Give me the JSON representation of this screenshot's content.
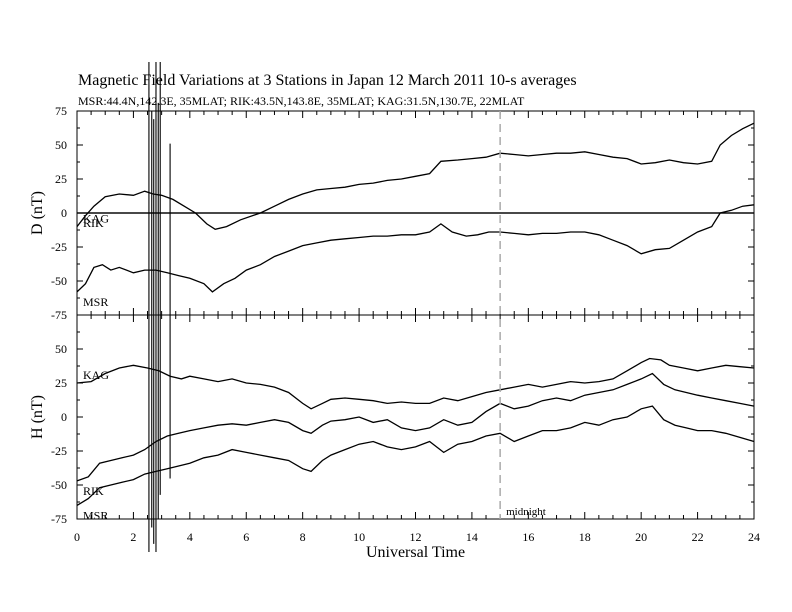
{
  "chart_data": {
    "type": "line",
    "title": "Magnetic Field Variations at 3 Stations in Japan         12  March    2011       10-s averages",
    "subtitle": "MSR:44.4N,142.3E, 35MLAT;  RIK:43.5N,143.8E, 35MLAT;  KAG:31.5N,130.7E, 22MLAT",
    "xlabel": "Universal Time",
    "x_ticks": [
      "0",
      "2",
      "4",
      "6",
      "8",
      "10",
      "12",
      "14",
      "16",
      "18",
      "20",
      "22",
      "24"
    ],
    "xlim": [
      0,
      24
    ],
    "panels": [
      {
        "ylabel": "D (nT)",
        "ylim": [
          -75,
          75
        ],
        "y_ticks": [
          "75",
          "50",
          "25",
          "0",
          "-25",
          "-50",
          "-75"
        ],
        "zero_line": true,
        "series": [
          {
            "name": "KAG",
            "x": [
              0,
              0.3,
              0.6,
              1.0,
              1.5,
              2.0,
              2.4,
              2.7,
              3.0,
              3.4,
              3.8,
              4.2,
              4.6,
              4.9,
              5.3,
              5.8,
              6.5,
              7.0,
              7.5,
              8.0,
              8.5,
              9.0,
              9.5,
              10.0,
              10.5,
              11.0,
              11.5,
              12.0,
              12.5,
              12.9,
              13.5,
              14.0,
              14.5,
              15.0,
              15.5,
              16.0,
              16.5,
              17.0,
              17.5,
              18.0,
              18.5,
              19.0,
              19.5,
              20.0,
              20.5,
              21.0,
              21.5,
              22.0,
              22.5,
              22.8,
              23.2,
              23.6,
              24.0
            ],
            "y": [
              -10,
              -2,
              5,
              12,
              14,
              13,
              16,
              14,
              13,
              10,
              5,
              0,
              -8,
              -12,
              -10,
              -5,
              0,
              5,
              10,
              14,
              17,
              18,
              19,
              21,
              22,
              24,
              25,
              27,
              29,
              38,
              39,
              40,
              41,
              44,
              43,
              42,
              43,
              44,
              44,
              45,
              43,
              41,
              40,
              36,
              37,
              39,
              37,
              36,
              38,
              50,
              57,
              62,
              66
            ]
          },
          {
            "name": "RIK",
            "x": [
              0,
              24
            ],
            "y": [
              0,
              0
            ]
          },
          {
            "name": "MSR",
            "x": [
              0,
              0.3,
              0.6,
              0.9,
              1.2,
              1.5,
              2.0,
              2.4,
              2.8,
              3.2,
              3.6,
              4.0,
              4.5,
              4.8,
              5.2,
              5.6,
              6.0,
              6.5,
              7.0,
              7.5,
              8.0,
              8.5,
              9.0,
              9.5,
              10.0,
              10.5,
              11.0,
              11.5,
              12.0,
              12.5,
              12.9,
              13.3,
              13.8,
              14.2,
              14.6,
              15.0,
              15.5,
              16.0,
              16.5,
              17.0,
              17.5,
              18.0,
              18.5,
              19.0,
              19.5,
              20.0,
              20.5,
              21.0,
              21.5,
              22.0,
              22.5,
              22.8,
              23.2,
              23.6,
              24.0
            ],
            "y": [
              -58,
              -52,
              -40,
              -38,
              -42,
              -40,
              -44,
              -42,
              -42,
              -44,
              -46,
              -48,
              -52,
              -58,
              -52,
              -48,
              -42,
              -38,
              -32,
              -28,
              -24,
              -22,
              -20,
              -19,
              -18,
              -17,
              -17,
              -16,
              -16,
              -14,
              -8,
              -14,
              -17,
              -16,
              -14,
              -14,
              -15,
              -16,
              -15,
              -15,
              -14,
              -14,
              -16,
              -20,
              -24,
              -30,
              -27,
              -26,
              -20,
              -14,
              -10,
              0,
              2,
              5,
              6
            ]
          }
        ]
      },
      {
        "ylabel": "H (nT)",
        "ylim": [
          -75,
          75
        ],
        "y_ticks": [
          "75",
          "50",
          "25",
          "0",
          "-25",
          "-50",
          "-75"
        ],
        "zero_line": false,
        "series": [
          {
            "name": "KAG",
            "x": [
              0,
              0.5,
              1.0,
              1.5,
              2.0,
              2.5,
              2.9,
              3.3,
              3.7,
              4.0,
              4.5,
              5.0,
              5.5,
              6.0,
              6.5,
              7.0,
              7.5,
              8.0,
              8.3,
              8.7,
              9.0,
              9.5,
              10.0,
              10.5,
              11.0,
              11.5,
              12.0,
              12.5,
              13.0,
              13.5,
              14.0,
              14.5,
              15.0,
              15.5,
              16.0,
              16.5,
              17.0,
              17.5,
              18.0,
              18.5,
              19.0,
              19.5,
              20.0,
              20.3,
              20.7,
              21.0,
              21.5,
              22.0,
              22.5,
              23.0,
              23.5,
              24.0
            ],
            "y": [
              25,
              26,
              32,
              36,
              38,
              36,
              34,
              30,
              28,
              30,
              28,
              26,
              28,
              25,
              24,
              22,
              18,
              10,
              6,
              10,
              13,
              14,
              13,
              12,
              10,
              11,
              10,
              10,
              14,
              12,
              15,
              18,
              20,
              22,
              24,
              22,
              24,
              26,
              25,
              26,
              28,
              34,
              40,
              43,
              42,
              38,
              36,
              34,
              36,
              38,
              37,
              36
            ]
          },
          {
            "name": "RIK",
            "x": [
              0,
              0.4,
              0.8,
              1.2,
              1.6,
              2.0,
              2.4,
              2.8,
              3.2,
              3.6,
              4.0,
              4.5,
              5.0,
              5.5,
              6.0,
              6.5,
              7.0,
              7.5,
              8.0,
              8.3,
              8.7,
              9.0,
              9.5,
              10.0,
              10.5,
              11.0,
              11.5,
              12.0,
              12.5,
              13.0,
              13.5,
              14.0,
              14.5,
              15.0,
              15.5,
              16.0,
              16.5,
              17.0,
              17.5,
              18.0,
              18.5,
              19.0,
              19.5,
              20.0,
              20.4,
              20.8,
              21.2,
              21.6,
              22.0,
              22.5,
              23.0,
              23.5,
              24.0
            ],
            "y": [
              -47,
              -44,
              -34,
              -32,
              -30,
              -28,
              -24,
              -18,
              -14,
              -12,
              -10,
              -8,
              -6,
              -5,
              -6,
              -4,
              -2,
              -4,
              -10,
              -12,
              -6,
              -3,
              -2,
              0,
              -4,
              -2,
              -8,
              -10,
              -8,
              -2,
              -6,
              -4,
              4,
              10,
              6,
              8,
              12,
              14,
              12,
              16,
              18,
              20,
              24,
              28,
              32,
              24,
              20,
              18,
              16,
              14,
              12,
              10,
              8
            ]
          },
          {
            "name": "MSR",
            "x": [
              0,
              0.4,
              0.8,
              1.2,
              1.6,
              2.0,
              2.4,
              2.8,
              3.2,
              3.6,
              4.0,
              4.5,
              5.0,
              5.5,
              6.0,
              6.5,
              7.0,
              7.5,
              8.0,
              8.3,
              8.7,
              9.0,
              9.5,
              10.0,
              10.5,
              11.0,
              11.5,
              12.0,
              12.5,
              13.0,
              13.5,
              14.0,
              14.5,
              15.0,
              15.5,
              16.0,
              16.5,
              17.0,
              17.5,
              18.0,
              18.5,
              19.0,
              19.5,
              20.0,
              20.4,
              20.8,
              21.2,
              21.6,
              22.0,
              22.5,
              23.0,
              23.5,
              24.0
            ],
            "y": [
              -65,
              -60,
              -52,
              -50,
              -48,
              -46,
              -42,
              -40,
              -38,
              -36,
              -34,
              -30,
              -28,
              -24,
              -26,
              -28,
              -30,
              -32,
              -38,
              -40,
              -32,
              -28,
              -24,
              -20,
              -18,
              -22,
              -24,
              -22,
              -18,
              -26,
              -20,
              -18,
              -14,
              -12,
              -18,
              -14,
              -10,
              -10,
              -8,
              -4,
              -6,
              -2,
              0,
              6,
              8,
              -2,
              -6,
              -8,
              -10,
              -10,
              -12,
              -15,
              -18
            ]
          }
        ]
      }
    ],
    "spikes": [
      {
        "x": 2.55,
        "ymin": -75,
        "ymax": 75
      },
      {
        "x": 2.65,
        "ymin": -60,
        "ymax": 45
      },
      {
        "x": 2.72,
        "ymin": -70,
        "ymax": 40
      },
      {
        "x": 2.8,
        "ymin": -75,
        "ymax": 75
      },
      {
        "x": 2.88,
        "ymin": -55,
        "ymax": 50
      },
      {
        "x": 2.95,
        "ymin": -40,
        "ymax": 75
      },
      {
        "x": 3.3,
        "ymin": -30,
        "ymax": 25
      }
    ],
    "midnight": {
      "x": 15,
      "label": "midnight"
    },
    "grid": false,
    "colors": {
      "line": "#000000",
      "midnight": "#aaaaaa"
    }
  }
}
